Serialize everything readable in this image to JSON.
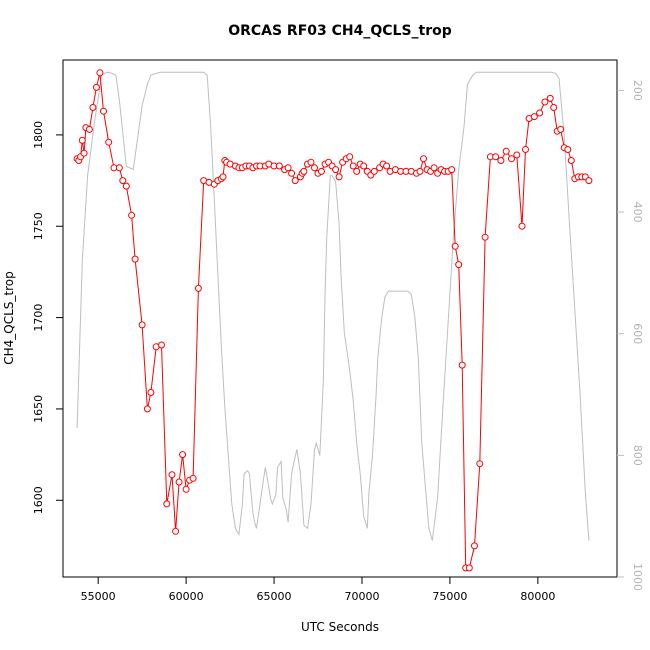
{
  "chart_data": {
    "type": "line",
    "title": "ORCAS RF03 CH4_QCLS_trop",
    "xlabel": "UTC Seconds",
    "ylabel": "CH4_QCLS_trop",
    "xlim": [
      53000,
      84500
    ],
    "ylim": [
      1558,
      1841
    ],
    "y2lim": [
      1000,
      150
    ],
    "y2_reversed": true,
    "x_ticks": [
      55000,
      60000,
      65000,
      70000,
      75000,
      80000
    ],
    "y_ticks": [
      1600,
      1650,
      1700,
      1750,
      1800
    ],
    "y2_ticks": [
      200,
      400,
      600,
      800,
      1000
    ],
    "colors": {
      "ch4": "#ff0000",
      "pressure": "#bebebe",
      "axis": "#000000",
      "right_axis": "#bebebe"
    },
    "series": [
      {
        "role": "ch4",
        "axis": "left",
        "style": "line+open-circles",
        "x": [
          53800,
          53900,
          54000,
          54100,
          54200,
          54300,
          54500,
          54700,
          54900,
          55100,
          55300,
          55600,
          55900,
          56200,
          56400,
          56600,
          56900,
          57100,
          57500,
          57800,
          58000,
          58300,
          58600,
          58900,
          59200,
          59400,
          59600,
          59800,
          60000,
          60200,
          60400,
          60700,
          61000,
          61300,
          61600,
          61800,
          62000,
          62100,
          62200,
          62300,
          62500,
          62800,
          63000,
          63200,
          63400,
          63600,
          63800,
          64000,
          64200,
          64500,
          64700,
          65000,
          65300,
          65600,
          65800,
          66000,
          66200,
          66500,
          66600,
          66700,
          66900,
          67100,
          67300,
          67500,
          67700,
          67900,
          68100,
          68300,
          68500,
          68700,
          68900,
          69100,
          69300,
          69500,
          69700,
          69900,
          70100,
          70300,
          70500,
          70700,
          71000,
          71200,
          71400,
          71600,
          71900,
          72200,
          72500,
          72800,
          73100,
          73300,
          73500,
          73700,
          73900,
          74100,
          74300,
          74500,
          74700,
          74900,
          75100,
          75300,
          75500,
          75700,
          75900,
          76100,
          76400,
          76700,
          77000,
          77300,
          77600,
          77900,
          78200,
          78500,
          78800,
          79100,
          79300,
          79500,
          79800,
          80100,
          80400,
          80700,
          80900,
          81100,
          81300,
          81500,
          81700,
          81900,
          82100,
          82300,
          82500,
          82700,
          82900
        ],
        "y": [
          1787,
          1786,
          1788,
          1797,
          1790,
          1804,
          1803,
          1815,
          1826,
          1834,
          1813,
          1796,
          1782,
          1782,
          1775,
          1772,
          1756,
          1732,
          1696,
          1650,
          1659,
          1684,
          1685,
          1598,
          1614,
          1583,
          1610,
          1625,
          1606,
          1611,
          1612,
          1716,
          1775,
          1774,
          1773,
          1775,
          1776,
          1777,
          1786,
          1785,
          1784,
          1783,
          1782,
          1782,
          1783,
          1783,
          1782,
          1783,
          1783,
          1783,
          1784,
          1783,
          1783,
          1781,
          1782,
          1779,
          1775,
          1777,
          1779,
          1780,
          1784,
          1785,
          1782,
          1779,
          1780,
          1784,
          1785,
          1783,
          1781,
          1777,
          1785,
          1787,
          1788,
          1783,
          1780,
          1784,
          1783,
          1780,
          1778,
          1780,
          1782,
          1784,
          1783,
          1780,
          1781,
          1780,
          1780,
          1780,
          1779,
          1780,
          1787,
          1781,
          1780,
          1782,
          1779,
          1781,
          1780,
          1780,
          1781,
          1739,
          1729,
          1674,
          1563,
          1563,
          1575,
          1620,
          1744,
          1788,
          1788,
          1786,
          1791,
          1787,
          1789,
          1750,
          1792,
          1809,
          1810,
          1812,
          1818,
          1820,
          1815,
          1802,
          1803,
          1793,
          1792,
          1786,
          1776,
          1777,
          1777,
          1777,
          1775
        ]
      },
      {
        "role": "pressure",
        "axis": "right",
        "style": "line",
        "x": [
          53800,
          54100,
          54400,
          54800,
          55200,
          55500,
          55800,
          56000,
          56200,
          56400,
          56600,
          57000,
          57500,
          57800,
          58000,
          58500,
          59000,
          59500,
          60000,
          60500,
          61000,
          61200,
          61400,
          61600,
          61800,
          62000,
          62200,
          62400,
          62600,
          62800,
          63000,
          63200,
          63300,
          63500,
          63600,
          63800,
          63900,
          64000,
          64200,
          64300,
          64500,
          64600,
          64800,
          64900,
          65100,
          65200,
          65400,
          65500,
          65700,
          65800,
          66000,
          66100,
          66300,
          66500,
          66700,
          66900,
          67100,
          67300,
          67400,
          67600,
          67800,
          67900,
          68000,
          68200,
          68300,
          68500,
          68700,
          68800,
          68900,
          69000,
          69100,
          69300,
          69500,
          69700,
          69900,
          70100,
          70300,
          70400,
          70600,
          70800,
          70900,
          71100,
          71300,
          71500,
          71700,
          72000,
          72300,
          72600,
          72800,
          73000,
          73200,
          73400,
          73600,
          73800,
          73900,
          74000,
          74300,
          74600,
          74900,
          75200,
          75500,
          75800,
          76000,
          76300,
          76500,
          77000,
          77500,
          78000,
          78500,
          79000,
          79500,
          80000,
          80500,
          80800,
          81000,
          81200,
          81500,
          81800,
          82100,
          82400,
          82700,
          82900
        ],
        "y": [
          755,
          480,
          340,
          250,
          175,
          170,
          172,
          175,
          215,
          270,
          325,
          330,
          225,
          190,
          175,
          170,
          170,
          170,
          170,
          170,
          170,
          175,
          260,
          380,
          500,
          620,
          720,
          800,
          880,
          920,
          930,
          880,
          830,
          825,
          830,
          895,
          910,
          920,
          880,
          860,
          820,
          835,
          870,
          880,
          865,
          820,
          810,
          870,
          890,
          910,
          830,
          815,
          790,
          830,
          915,
          920,
          880,
          790,
          780,
          800,
          680,
          530,
          440,
          340,
          340,
          350,
          420,
          500,
          550,
          600,
          620,
          660,
          710,
          780,
          830,
          900,
          920,
          860,
          800,
          700,
          640,
          580,
          540,
          530,
          530,
          530,
          530,
          530,
          535,
          570,
          640,
          780,
          850,
          920,
          930,
          940,
          870,
          720,
          580,
          440,
          330,
          260,
          190,
          175,
          170,
          170,
          170,
          170,
          170,
          170,
          170,
          170,
          170,
          170,
          172,
          180,
          275,
          420,
          560,
          700,
          860,
          940
        ]
      }
    ]
  }
}
